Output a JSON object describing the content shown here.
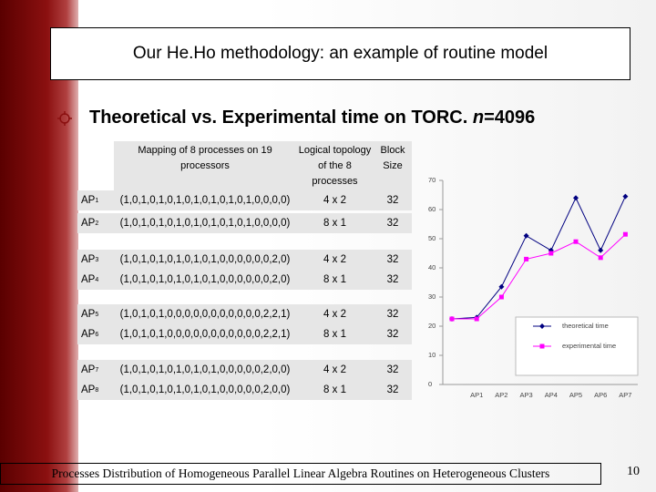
{
  "header": {
    "title": "Our He.Ho methodology: an example of routine model"
  },
  "bullet": {
    "text": "Theoretical vs. Experimental time on TORC. ",
    "var": "n",
    "rest": "=4096"
  },
  "table": {
    "headers": [
      "Mapping of 8 processes on 19 processors",
      "Logical topology of the 8 processes",
      "Block Size"
    ],
    "rows": [
      {
        "label": "AP",
        "index": "1",
        "mapping": "(1,0,1,0,1,0,1,0,1,0,1,0,1,0,1,0,0,0,0)",
        "topology": "4 x 2",
        "block": "32"
      },
      {
        "label": "AP",
        "index": "2",
        "mapping": "(1,0,1,0,1,0,1,0,1,0,1,0,1,0,1,0,0,0,0)",
        "topology": "8 x 1",
        "block": "32"
      },
      {
        "label": "AP",
        "index": "3",
        "mapping": "(1,0,1,0,1,0,1,0,1,0,1,0,0,0,0,0,0,2,0)",
        "topology": "4 x 2",
        "block": "32"
      },
      {
        "label": "AP",
        "index": "4",
        "mapping": "(1,0,1,0,1,0,1,0,1,0,1,0,0,0,0,0,0,2,0)",
        "topology": "8 x 1",
        "block": "32"
      },
      {
        "label": "AP",
        "index": "5",
        "mapping": "(1,0,1,0,1,0,0,0,0,0,0,0,0,0,0,0,2,2,1)",
        "topology": "4 x 2",
        "block": "32"
      },
      {
        "label": "AP",
        "index": "6",
        "mapping": "(1,0,1,0,1,0,0,0,0,0,0,0,0,0,0,0,2,2,1)",
        "topology": "8 x 1",
        "block": "32"
      },
      {
        "label": "AP",
        "index": "7",
        "mapping": "(1,0,1,0,1,0,1,0,1,0,1,0,0,0,0,0,2,0,0)",
        "topology": "4 x 2",
        "block": "32"
      },
      {
        "label": "AP",
        "index": "8",
        "mapping": "(1,0,1,0,1,0,1,0,1,0,1,0,0,0,0,0,2,0,0)",
        "topology": "8 x 1",
        "block": "32"
      }
    ]
  },
  "chart_data": {
    "type": "line",
    "categories": [
      null,
      "AP1",
      "AP2",
      "AP3",
      "AP4",
      "AP5",
      "AP6",
      "AP7"
    ],
    "series": [
      {
        "name": "theoretical time",
        "color": "#000080",
        "marker": "diamond",
        "values": [
          22.5,
          23,
          33.5,
          51,
          46,
          64,
          46,
          64.5
        ]
      },
      {
        "name": "experimental time",
        "color": "#ff00ff",
        "marker": "square",
        "values": [
          22.5,
          22.5,
          30,
          43,
          45,
          49,
          43.5,
          51.5
        ]
      }
    ],
    "ylim": [
      0,
      70
    ],
    "yticks": [
      0,
      10,
      20,
      30,
      40,
      50,
      60,
      70
    ]
  },
  "footer": {
    "text": "Processes Distribution of Homogeneous Parallel Linear Algebra Routines on Heterogeneous Clusters",
    "page": "10"
  }
}
